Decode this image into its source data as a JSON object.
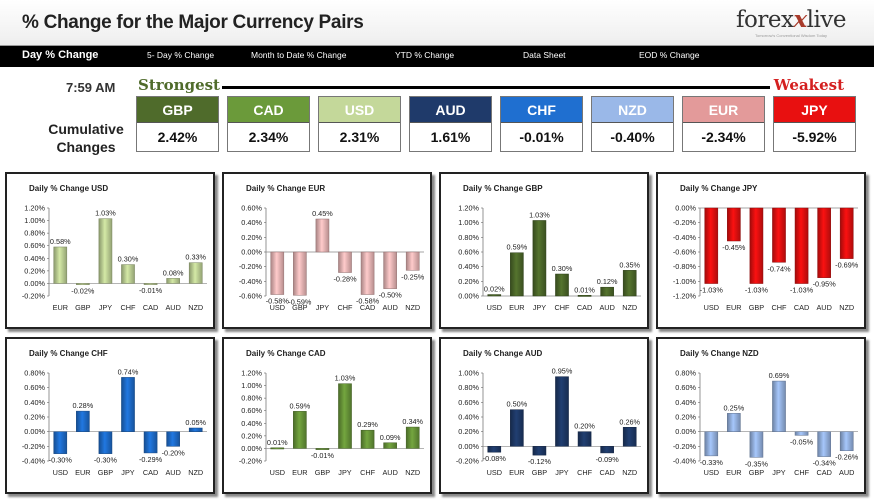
{
  "header": {
    "title": "% Change for the Major Currency Pairs",
    "logo_main_a": "forex",
    "logo_x": "x",
    "logo_main_b": "live",
    "logo_tagline": "Tomorrow's Conventional Wisdom Today"
  },
  "nav": {
    "items": [
      "Day % Change",
      "5- Day % Change",
      "Month to Date % Change",
      "YTD % Change",
      "Data Sheet",
      "EOD % Change"
    ]
  },
  "summary": {
    "time": "7:59 AM",
    "strongest_label": "Strongest",
    "weakest_label": "Weakest",
    "cumulative_label": "Cumulative Changes",
    "currencies": [
      {
        "name": "GBP",
        "value": "2.42%",
        "color": "#4f6b2b"
      },
      {
        "name": "CAD",
        "value": "2.34%",
        "color": "#6b9a3a"
      },
      {
        "name": "USD",
        "value": "2.31%",
        "color": "#c4d89a"
      },
      {
        "name": "AUD",
        "value": "1.61%",
        "color": "#1f3a6a"
      },
      {
        "name": "CHF",
        "value": "-0.01%",
        "color": "#1f6fd0"
      },
      {
        "name": "NZD",
        "value": "-0.40%",
        "color": "#9ab8e8"
      },
      {
        "name": "EUR",
        "value": "-2.34%",
        "color": "#e39a9a"
      },
      {
        "name": "JPY",
        "value": "-5.92%",
        "color": "#e81010"
      }
    ]
  },
  "chart_data": [
    {
      "type": "bar",
      "title": "Daily % Change USD",
      "categories": [
        "EUR",
        "GBP",
        "JPY",
        "CHF",
        "CAD",
        "AUD",
        "NZD"
      ],
      "values": [
        0.58,
        -0.02,
        1.03,
        0.3,
        -0.01,
        0.08,
        0.33
      ],
      "labels": [
        "0.58%",
        "-0.02%",
        "1.03%",
        "0.30%",
        "-0.01%",
        "0.08%",
        "0.33%"
      ],
      "ylim": [
        -0.2,
        1.2
      ],
      "step": 0.2,
      "color": "#c4d89a"
    },
    {
      "type": "bar",
      "title": "Daily % Change EUR",
      "categories": [
        "USD",
        "GBP",
        "JPY",
        "CHF",
        "CAD",
        "AUD",
        "NZD"
      ],
      "values": [
        -0.58,
        -0.59,
        0.45,
        -0.28,
        -0.58,
        -0.5,
        -0.25
      ],
      "labels": [
        "-0.58%",
        "-0.59%",
        "0.45%",
        "-0.28%",
        "-0.58%",
        "-0.50%",
        "-0.25%"
      ],
      "ylim": [
        -0.6,
        0.6
      ],
      "step": 0.2,
      "color": "#f2bcbc"
    },
    {
      "type": "bar",
      "title": "Daily % Change GBP",
      "categories": [
        "USD",
        "EUR",
        "JPY",
        "CHF",
        "CAD",
        "AUD",
        "NZD"
      ],
      "values": [
        0.02,
        0.59,
        1.03,
        0.3,
        0.01,
        0.12,
        0.35
      ],
      "labels": [
        "0.02%",
        "0.59%",
        "1.03%",
        "0.30%",
        "0.01%",
        "0.12%",
        "0.35%"
      ],
      "ylim": [
        0,
        1.2
      ],
      "step": 0.2,
      "color": "#4f6b2b"
    },
    {
      "type": "bar",
      "title": "Daily % Change JPY",
      "categories": [
        "USD",
        "EUR",
        "GBP",
        "CHF",
        "CAD",
        "AUD",
        "NZD"
      ],
      "values": [
        -1.03,
        -0.45,
        -1.03,
        -0.74,
        -1.03,
        -0.95,
        -0.69
      ],
      "labels": [
        "-1.03%",
        "-0.45%",
        "-1.03%",
        "-0.74%",
        "-1.03%",
        "-0.95%",
        "-0.69%"
      ],
      "ylim": [
        -1.2,
        0
      ],
      "step": 0.2,
      "color": "#e81010"
    },
    {
      "type": "bar",
      "title": "Daily % Change CHF",
      "categories": [
        "USD",
        "EUR",
        "GBP",
        "JPY",
        "CAD",
        "AUD",
        "NZD"
      ],
      "values": [
        -0.3,
        0.28,
        -0.3,
        0.74,
        -0.29,
        -0.2,
        0.05
      ],
      "labels": [
        "-0.30%",
        "0.28%",
        "-0.30%",
        "0.74%",
        "-0.29%",
        "-0.20%",
        "0.05%"
      ],
      "ylim": [
        -0.4,
        0.8
      ],
      "step": 0.2,
      "color": "#1f6fd0"
    },
    {
      "type": "bar",
      "title": "Daily % Change CAD",
      "categories": [
        "USD",
        "EUR",
        "GBP",
        "JPY",
        "CHF",
        "AUD",
        "NZD"
      ],
      "values": [
        0.01,
        0.59,
        -0.01,
        1.03,
        0.29,
        0.09,
        0.34
      ],
      "labels": [
        "0.01%",
        "0.59%",
        "-0.01%",
        "1.03%",
        "0.29%",
        "0.09%",
        "0.34%"
      ],
      "ylim": [
        -0.2,
        1.2
      ],
      "step": 0.2,
      "color": "#6b9a3a"
    },
    {
      "type": "bar",
      "title": "Daily % Change AUD",
      "categories": [
        "USD",
        "EUR",
        "GBP",
        "JPY",
        "CHF",
        "CAD",
        "NZD"
      ],
      "values": [
        -0.08,
        0.5,
        -0.12,
        0.95,
        0.2,
        -0.09,
        0.26
      ],
      "labels": [
        "-0.08%",
        "0.50%",
        "-0.12%",
        "0.95%",
        "0.20%",
        "-0.09%",
        "0.26%"
      ],
      "ylim": [
        -0.2,
        1.0
      ],
      "step": 0.2,
      "color": "#1f3a6a"
    },
    {
      "type": "bar",
      "title": "Daily % Change NZD",
      "categories": [
        "USD",
        "EUR",
        "GBP",
        "JPY",
        "CHF",
        "CAD",
        "AUD"
      ],
      "values": [
        -0.33,
        0.25,
        -0.35,
        0.69,
        -0.05,
        -0.34,
        -0.26
      ],
      "labels": [
        "-0.33%",
        "0.25%",
        "-0.35%",
        "0.69%",
        "-0.05%",
        "-0.34%",
        "-0.26%"
      ],
      "ylim": [
        -0.4,
        0.8
      ],
      "step": 0.2,
      "color": "#9ab8e8"
    }
  ]
}
